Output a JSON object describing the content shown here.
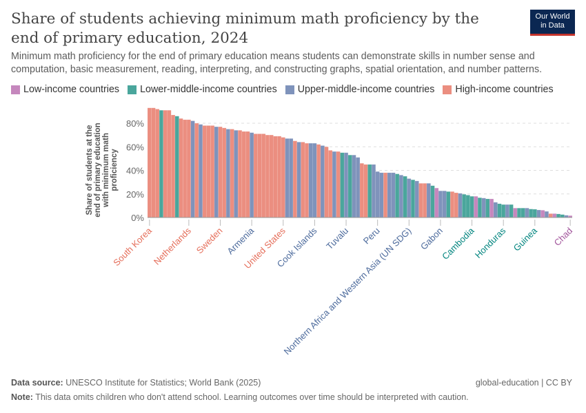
{
  "title": "Share of students achieving minimum math proficiency by the end of primary education, 2024",
  "subtitle": "Minimum math proficiency for the end of primary education means students can demonstrate skills in number sense and computation, basic measurement, reading, interpreting, and constructing graphs, spatial orientation, and number patterns.",
  "logo": {
    "line1": "Our World",
    "line2": "in Data"
  },
  "footer": {
    "source_label": "Data source:",
    "source": "UNESCO Institute for Statistics; World Bank (2025)",
    "license": "global-education | CC BY",
    "note_label": "Note:",
    "note": "This data omits children who don't attend school. Learning outcomes over time should be interpreted with caution."
  },
  "chart_data": {
    "type": "bar",
    "ylabel": "Share of students at the end of primary education with minimum math proficiency",
    "ylim": [
      0,
      95
    ],
    "yticks": [
      "0%",
      "20%",
      "40%",
      "60%",
      "80%"
    ],
    "ytick_values": [
      0,
      20,
      40,
      60,
      80
    ],
    "grid": true,
    "legend_position": "top-left",
    "groups": [
      {
        "key": "L",
        "name": "Low-income countries",
        "color": "#c587bd",
        "label_color": "#a2559c"
      },
      {
        "key": "LM",
        "name": "Lower-middle-income countries",
        "color": "#4aa69c",
        "label_color": "#00847e"
      },
      {
        "key": "UM",
        "name": "Upper-middle-income countries",
        "color": "#7f93bb",
        "label_color": "#4c6a9c"
      },
      {
        "key": "H",
        "name": "High-income countries",
        "color": "#eb8e80",
        "label_color": "#e56e5a"
      }
    ],
    "bars": [
      {
        "v": 93,
        "g": "H",
        "label": "South Korea"
      },
      {
        "v": 93,
        "g": "H"
      },
      {
        "v": 92,
        "g": "H"
      },
      {
        "v": 91,
        "g": "LM"
      },
      {
        "v": 91,
        "g": "H"
      },
      {
        "v": 91,
        "g": "H"
      },
      {
        "v": 87,
        "g": "H"
      },
      {
        "v": 86,
        "g": "LM"
      },
      {
        "v": 84,
        "g": "H"
      },
      {
        "v": 83,
        "g": "H"
      },
      {
        "v": 83,
        "g": "H",
        "label": "Netherlands"
      },
      {
        "v": 82,
        "g": "UM"
      },
      {
        "v": 80,
        "g": "H"
      },
      {
        "v": 79,
        "g": "UM"
      },
      {
        "v": 78,
        "g": "H"
      },
      {
        "v": 78,
        "g": "H"
      },
      {
        "v": 78,
        "g": "H"
      },
      {
        "v": 77,
        "g": "UM"
      },
      {
        "v": 77,
        "g": "H",
        "label": "Sweden"
      },
      {
        "v": 76,
        "g": "H"
      },
      {
        "v": 75,
        "g": "UM"
      },
      {
        "v": 75,
        "g": "H"
      },
      {
        "v": 74,
        "g": "UM"
      },
      {
        "v": 74,
        "g": "H"
      },
      {
        "v": 73,
        "g": "H"
      },
      {
        "v": 73,
        "g": "H"
      },
      {
        "v": 72,
        "g": "UM",
        "label": "Armenia"
      },
      {
        "v": 71,
        "g": "H"
      },
      {
        "v": 71,
        "g": "H"
      },
      {
        "v": 71,
        "g": "H"
      },
      {
        "v": 70,
        "g": "H"
      },
      {
        "v": 70,
        "g": "H"
      },
      {
        "v": 69,
        "g": "H"
      },
      {
        "v": 69,
        "g": "H"
      },
      {
        "v": 68,
        "g": "H",
        "label": "United States"
      },
      {
        "v": 67,
        "g": "UM"
      },
      {
        "v": 67,
        "g": "UM"
      },
      {
        "v": 65,
        "g": "H"
      },
      {
        "v": 64,
        "g": "UM"
      },
      {
        "v": 64,
        "g": "H"
      },
      {
        "v": 63,
        "g": "H"
      },
      {
        "v": 63,
        "g": "UM"
      },
      {
        "v": 63,
        "g": "UM",
        "label": "Cook Islands"
      },
      {
        "v": 62,
        "g": "H"
      },
      {
        "v": 61,
        "g": "UM"
      },
      {
        "v": 60,
        "g": "H"
      },
      {
        "v": 57,
        "g": "H"
      },
      {
        "v": 56,
        "g": "UM"
      },
      {
        "v": 56,
        "g": "H"
      },
      {
        "v": 55,
        "g": "LM"
      },
      {
        "v": 55,
        "g": "UM",
        "label": "Tuvalu"
      },
      {
        "v": 53,
        "g": "LM"
      },
      {
        "v": 53,
        "g": "UM"
      },
      {
        "v": 51,
        "g": "UM"
      },
      {
        "v": 46,
        "g": "H"
      },
      {
        "v": 45,
        "g": "H"
      },
      {
        "v": 45,
        "g": "LM"
      },
      {
        "v": 45,
        "g": "UM"
      },
      {
        "v": 39,
        "g": "UM",
        "label": "Peru"
      },
      {
        "v": 38,
        "g": "UM"
      },
      {
        "v": 38,
        "g": "H"
      },
      {
        "v": 38,
        "g": "UM"
      },
      {
        "v": 38,
        "g": "UM"
      },
      {
        "v": 37,
        "g": "LM"
      },
      {
        "v": 36,
        "g": "UM"
      },
      {
        "v": 35,
        "g": "LM"
      },
      {
        "v": 33,
        "g": "UM",
        "label": "Northern Africa and Western Asia (UN SDG)"
      },
      {
        "v": 32,
        "g": "LM"
      },
      {
        "v": 31,
        "g": "UM"
      },
      {
        "v": 29,
        "g": "H"
      },
      {
        "v": 29,
        "g": "H"
      },
      {
        "v": 29,
        "g": "UM"
      },
      {
        "v": 27,
        "g": "LM"
      },
      {
        "v": 25,
        "g": "L"
      },
      {
        "v": 22.6,
        "g": "UM",
        "label": "Gabon"
      },
      {
        "v": 22.6,
        "g": "UM"
      },
      {
        "v": 22,
        "g": "LM"
      },
      {
        "v": 22,
        "g": "H"
      },
      {
        "v": 21,
        "g": "H"
      },
      {
        "v": 20.5,
        "g": "UM"
      },
      {
        "v": 19.7,
        "g": "LM"
      },
      {
        "v": 19,
        "g": "LM"
      },
      {
        "v": 18,
        "g": "LM",
        "label": "Cambodia"
      },
      {
        "v": 18,
        "g": "L"
      },
      {
        "v": 16.8,
        "g": "LM"
      },
      {
        "v": 16.5,
        "g": "UM"
      },
      {
        "v": 15.8,
        "g": "LM"
      },
      {
        "v": 15.8,
        "g": "L"
      },
      {
        "v": 12.9,
        "g": "UM"
      },
      {
        "v": 11.7,
        "g": "LM"
      },
      {
        "v": 11,
        "g": "LM",
        "label": "Honduras"
      },
      {
        "v": 11,
        "g": "UM"
      },
      {
        "v": 11,
        "g": "LM"
      },
      {
        "v": 8,
        "g": "L"
      },
      {
        "v": 8,
        "g": "LM"
      },
      {
        "v": 8,
        "g": "LM"
      },
      {
        "v": 8,
        "g": "UM"
      },
      {
        "v": 7.2,
        "g": "LM"
      },
      {
        "v": 7,
        "g": "LM",
        "label": "Guinea"
      },
      {
        "v": 6.4,
        "g": "UM"
      },
      {
        "v": 6.2,
        "g": "L"
      },
      {
        "v": 5.2,
        "g": "UM"
      },
      {
        "v": 3.3,
        "g": "H"
      },
      {
        "v": 3.3,
        "g": "L"
      },
      {
        "v": 3,
        "g": "LM"
      },
      {
        "v": 2.5,
        "g": "LM"
      },
      {
        "v": 1.9,
        "g": "UM"
      },
      {
        "v": 1.6,
        "g": "L",
        "label": "Chad"
      }
    ]
  }
}
